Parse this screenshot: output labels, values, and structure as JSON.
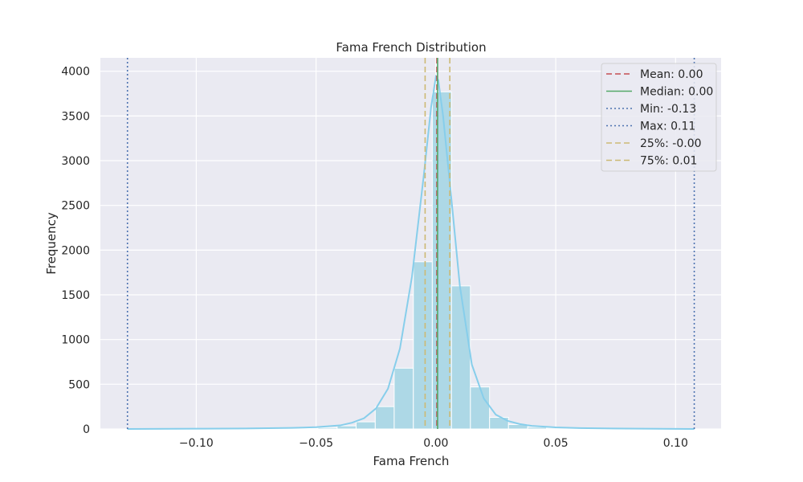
{
  "chart_data": {
    "type": "bar",
    "title": "Fama French Distribution",
    "xlabel": "Fama French",
    "ylabel": "Frequency",
    "xlim": [
      -0.14,
      0.119
    ],
    "ylim": [
      0,
      4150
    ],
    "xticks": [
      -0.1,
      -0.05,
      0.0,
      0.05,
      0.1
    ],
    "xtick_labels": [
      "−0.10",
      "−0.05",
      "0.00",
      "0.05",
      "0.10"
    ],
    "yticks": [
      0,
      500,
      1000,
      1500,
      2000,
      2500,
      3000,
      3500,
      4000
    ],
    "ytick_labels": [
      "0",
      "500",
      "1000",
      "1500",
      "2000",
      "2500",
      "3000",
      "3500",
      "4000"
    ],
    "grid": true,
    "legend_position": "top-right",
    "colors": {
      "background": "#eaeaf2",
      "grid": "#ffffff",
      "bars": "#add8e6",
      "kde": "#87ceeb",
      "mean": "#c44e52",
      "median": "#55a868",
      "minmax": "#4c72b0",
      "quartile": "#ccb974"
    },
    "histogram": {
      "bin_edges": [
        -0.1287,
        -0.1207,
        -0.1128,
        -0.1048,
        -0.0969,
        -0.0889,
        -0.081,
        -0.073,
        -0.0651,
        -0.0571,
        -0.0492,
        -0.0412,
        -0.0333,
        -0.0253,
        -0.0174,
        -0.0094,
        -0.0015,
        0.0065,
        0.0144,
        0.0224,
        0.0303,
        0.0383,
        0.0462,
        0.0542,
        0.0621,
        0.0701,
        0.078,
        0.086,
        0.0939,
        0.1019,
        0.1078
      ],
      "counts": [
        1,
        0,
        0,
        0,
        1,
        1,
        2,
        3,
        5,
        8,
        15,
        35,
        80,
        250,
        680,
        1870,
        3770,
        1600,
        470,
        130,
        50,
        20,
        10,
        5,
        3,
        2,
        1,
        1,
        0,
        1
      ]
    },
    "kde": {
      "x": [
        -0.1287,
        -0.1,
        -0.08,
        -0.06,
        -0.05,
        -0.04,
        -0.035,
        -0.03,
        -0.025,
        -0.02,
        -0.015,
        -0.01,
        -0.005,
        -0.002,
        0.0,
        0.001,
        0.003,
        0.006,
        0.01,
        0.015,
        0.02,
        0.025,
        0.03,
        0.035,
        0.04,
        0.05,
        0.06,
        0.08,
        0.1078
      ],
      "y": [
        0,
        3,
        6,
        12,
        20,
        40,
        70,
        120,
        230,
        450,
        900,
        1700,
        2850,
        3600,
        3940,
        3900,
        3500,
        2700,
        1600,
        720,
        340,
        160,
        90,
        55,
        35,
        18,
        10,
        4,
        0
      ]
    },
    "reference_lines": [
      {
        "name": "Mean: 0.00",
        "value": 0.0004,
        "style": "dashed",
        "color_key": "mean"
      },
      {
        "name": "Median: 0.00",
        "value": 0.0007,
        "style": "solid",
        "color_key": "median"
      },
      {
        "name": "Min: -0.13",
        "value": -0.1287,
        "style": "dotted",
        "color_key": "minmax"
      },
      {
        "name": "Max: 0.11",
        "value": 0.1078,
        "style": "dotted",
        "color_key": "minmax"
      },
      {
        "name": "25%: -0.00",
        "value": -0.0045,
        "style": "dashed",
        "color_key": "quartile"
      },
      {
        "name": "75%: 0.01",
        "value": 0.0058,
        "style": "dashed",
        "color_key": "quartile"
      }
    ]
  }
}
